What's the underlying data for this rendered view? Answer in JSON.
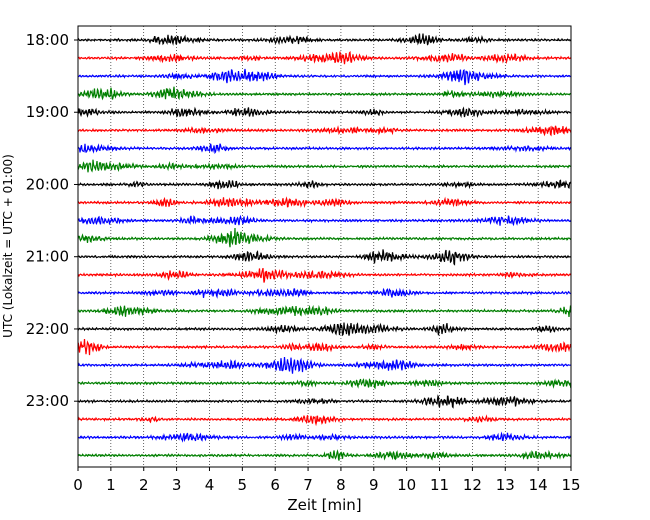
{
  "chart_data": {
    "type": "line",
    "title": "",
    "xlabel": "Zeit  [min]",
    "ylabel": "UTC (Lokalzeit = UTC + 01:00)",
    "xlim": [
      0,
      15
    ],
    "x_ticks": [
      "0",
      "1",
      "2",
      "3",
      "4",
      "5",
      "6",
      "7",
      "8",
      "9",
      "10",
      "11",
      "12",
      "13",
      "14",
      "15"
    ],
    "y_ticks": [
      "18:00",
      "19:00",
      "20:00",
      "21:00",
      "22:00",
      "23:00"
    ],
    "grid": "vertical dotted",
    "trace_interval_minutes": 15,
    "series_colors": [
      "#000000",
      "#ff0000",
      "#0000ff",
      "#007f00"
    ],
    "traces": [
      {
        "time": "18:00",
        "color": "#000000"
      },
      {
        "time": "18:15",
        "color": "#ff0000"
      },
      {
        "time": "18:30",
        "color": "#0000ff"
      },
      {
        "time": "18:45",
        "color": "#007f00"
      },
      {
        "time": "19:00",
        "color": "#000000"
      },
      {
        "time": "19:15",
        "color": "#ff0000"
      },
      {
        "time": "19:30",
        "color": "#0000ff"
      },
      {
        "time": "19:45",
        "color": "#007f00"
      },
      {
        "time": "20:00",
        "color": "#000000"
      },
      {
        "time": "20:15",
        "color": "#ff0000"
      },
      {
        "time": "20:30",
        "color": "#0000ff"
      },
      {
        "time": "20:45",
        "color": "#007f00"
      },
      {
        "time": "21:00",
        "color": "#000000"
      },
      {
        "time": "21:15",
        "color": "#ff0000"
      },
      {
        "time": "21:30",
        "color": "#0000ff"
      },
      {
        "time": "21:45",
        "color": "#007f00"
      },
      {
        "time": "22:00",
        "color": "#000000"
      },
      {
        "time": "22:15",
        "color": "#ff0000"
      },
      {
        "time": "22:30",
        "color": "#0000ff"
      },
      {
        "time": "22:45",
        "color": "#007f00"
      },
      {
        "time": "23:00",
        "color": "#000000"
      },
      {
        "time": "23:15",
        "color": "#ff0000"
      },
      {
        "time": "23:30",
        "color": "#0000ff"
      },
      {
        "time": "23:45",
        "color": "#007f00"
      }
    ]
  }
}
